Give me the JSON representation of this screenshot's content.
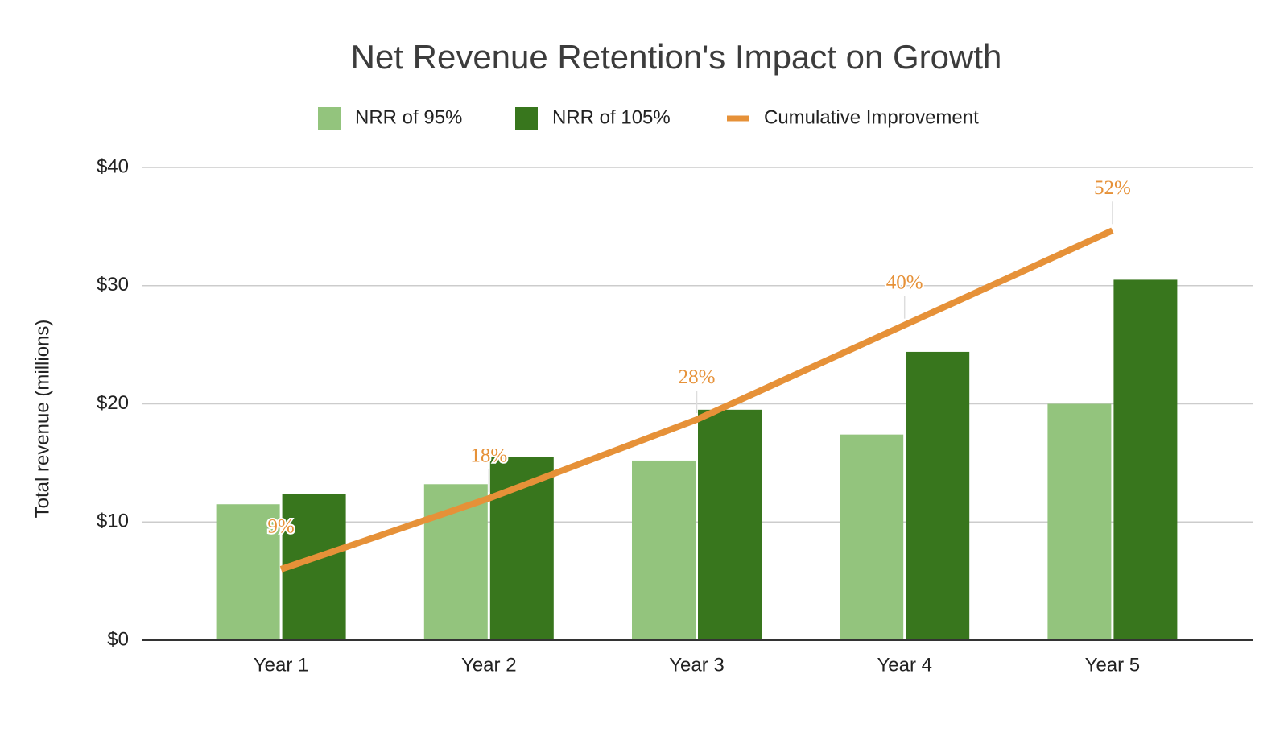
{
  "chart_data": {
    "type": "bar-line",
    "title": "Net Revenue Retention's Impact on Growth",
    "y_label": "Total revenue (millions)",
    "categories": [
      "Year 1",
      "Year 2",
      "Year 3",
      "Year 4",
      "Year 5"
    ],
    "series": [
      {
        "name": "NRR of 95%",
        "type": "bar",
        "color": "#93c47d",
        "values": [
          11.5,
          13.2,
          15.2,
          17.4,
          20.0
        ]
      },
      {
        "name": "NRR of 105%",
        "type": "bar",
        "color": "#38761d",
        "values": [
          12.4,
          15.5,
          19.5,
          24.4,
          30.5
        ]
      },
      {
        "name": "Cumulative Improvement",
        "type": "line",
        "axis": "y2",
        "color": "#e69138",
        "values": [
          9,
          18,
          28,
          40,
          52
        ],
        "value_labels": [
          "9%",
          "18%",
          "28%",
          "40%",
          "52%"
        ]
      }
    ],
    "ylim": [
      0,
      40
    ],
    "yticks": [
      {
        "value": 0,
        "label": "$0"
      },
      {
        "value": 10,
        "label": "$10"
      },
      {
        "value": 20,
        "label": "$20"
      },
      {
        "value": 30,
        "label": "$30"
      },
      {
        "value": 40,
        "label": "$40"
      }
    ],
    "y2lim": [
      0,
      60
    ],
    "grid": true,
    "legend": "top"
  }
}
